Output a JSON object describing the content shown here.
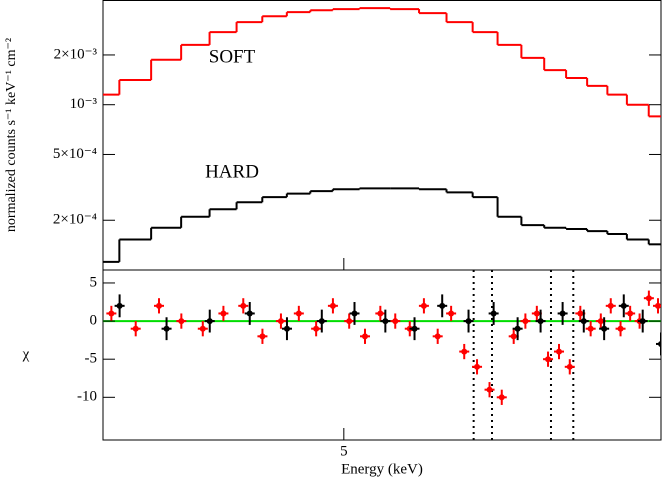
{
  "chart_data": [
    {
      "type": "step",
      "ylabel": "normalized counts s⁻¹ keV⁻¹ cm⁻²",
      "log_y": true,
      "log_x": true,
      "xlim": [
        3.2,
        9
      ],
      "ylim": [
        0.0001,
        0.0043
      ],
      "yticks": [
        {
          "value": 0.002,
          "label": "2×10⁻³"
        },
        {
          "value": 0.001,
          "label": "10⁻³"
        },
        {
          "value": 0.0005,
          "label": "5×10⁻⁴"
        },
        {
          "value": 0.0002,
          "label": "2×10⁻⁴"
        }
      ],
      "series": [
        {
          "name": "SOFT",
          "color": "#ff0000",
          "x": [
            3.2,
            3.4,
            3.6,
            3.8,
            4.0,
            4.2,
            4.4,
            4.6,
            4.8,
            5.0,
            5.3,
            5.6,
            5.9,
            6.2,
            6.5,
            6.8,
            7.1,
            7.4,
            7.7,
            8.0,
            8.3,
            8.6,
            9.0
          ],
          "values": [
            0.00115,
            0.00141,
            0.00187,
            0.0023,
            0.00275,
            0.00316,
            0.00343,
            0.00363,
            0.00373,
            0.00379,
            0.00384,
            0.00379,
            0.00358,
            0.00316,
            0.00275,
            0.0023,
            0.00192,
            0.00162,
            0.00145,
            0.0013,
            0.00115,
            0.001,
            0.00085
          ]
        },
        {
          "name": "HARD",
          "color": "#000000",
          "x": [
            3.2,
            3.4,
            3.6,
            3.8,
            4.0,
            4.2,
            4.4,
            4.6,
            4.8,
            5.0,
            5.3,
            5.6,
            5.9,
            6.2,
            6.5,
            6.8,
            7.1,
            7.4,
            7.7,
            8.0,
            8.3,
            8.6,
            9.0
          ],
          "values": [
            0.000112,
            0.000153,
            0.00018,
            0.00021,
            0.000233,
            0.000257,
            0.000276,
            0.00029,
            0.0003,
            0.000308,
            0.000312,
            0.000312,
            0.000308,
            0.000295,
            0.000276,
            0.00021,
            0.000187,
            0.00018,
            0.000177,
            0.000172,
            0.000165,
            0.000153,
            0.000143
          ]
        }
      ]
    },
    {
      "type": "residual",
      "ylabel": "χ",
      "xlabel": "Energy (keV)",
      "log_x": true,
      "xlim": [
        3.2,
        9
      ],
      "ylim": [
        -15.6,
        6.7
      ],
      "xticks": [
        5
      ],
      "yticks": [
        5,
        0,
        -5,
        -10
      ],
      "zero_line_color": "#00dd00",
      "vlines": [
        6.36,
        6.58,
        7.34,
        7.65
      ],
      "series": [
        {
          "color": "#ff0000",
          "x": [
            3.25,
            3.4,
            3.55,
            3.7,
            3.85,
            4.0,
            4.15,
            4.3,
            4.45,
            4.6,
            4.75,
            4.9,
            5.05,
            5.2,
            5.35,
            5.5,
            5.65,
            5.8,
            5.95,
            6.1,
            6.25,
            6.4,
            6.55,
            6.7,
            6.85,
            7.0,
            7.15,
            7.3,
            7.45,
            7.6,
            7.75,
            7.9,
            8.05,
            8.2,
            8.35,
            8.5,
            8.65,
            8.8,
            8.95
          ],
          "values": [
            1,
            -1,
            2,
            0,
            -1,
            1,
            2,
            -2,
            0,
            1,
            -1,
            2,
            0,
            -2,
            1,
            0,
            -1,
            2,
            -2,
            1,
            -4,
            -6,
            -9,
            -10,
            -2,
            0,
            1,
            -5,
            -4,
            -6,
            1,
            -1,
            0,
            2,
            -1,
            1,
            0,
            3,
            2
          ],
          "errors": [
            1,
            1,
            1,
            1,
            1,
            1,
            1,
            1,
            1,
            1,
            1,
            1,
            1,
            1,
            1,
            1,
            1,
            1,
            1,
            1,
            1,
            1,
            1,
            1,
            1,
            1,
            1,
            1,
            1,
            1,
            1,
            1,
            1,
            1,
            1,
            1,
            1,
            1,
            1
          ]
        },
        {
          "color": "#000000",
          "x": [
            3.3,
            3.6,
            3.9,
            4.2,
            4.5,
            4.8,
            5.1,
            5.4,
            5.7,
            6.0,
            6.3,
            6.6,
            6.9,
            7.2,
            7.5,
            7.8,
            8.1,
            8.4,
            8.7,
            9.0
          ],
          "values": [
            2,
            -1,
            0,
            1,
            -1,
            0,
            1,
            0,
            -1,
            2,
            0,
            1,
            -1,
            0,
            1,
            0,
            -1,
            2,
            0,
            -3
          ],
          "errors": [
            1.5,
            1.5,
            1.5,
            1.5,
            1.5,
            1.5,
            1.5,
            1.5,
            1.5,
            1.5,
            1.5,
            1.5,
            1.5,
            1.5,
            1.5,
            1.5,
            1.5,
            1.5,
            1.5,
            1.5
          ]
        }
      ]
    }
  ]
}
